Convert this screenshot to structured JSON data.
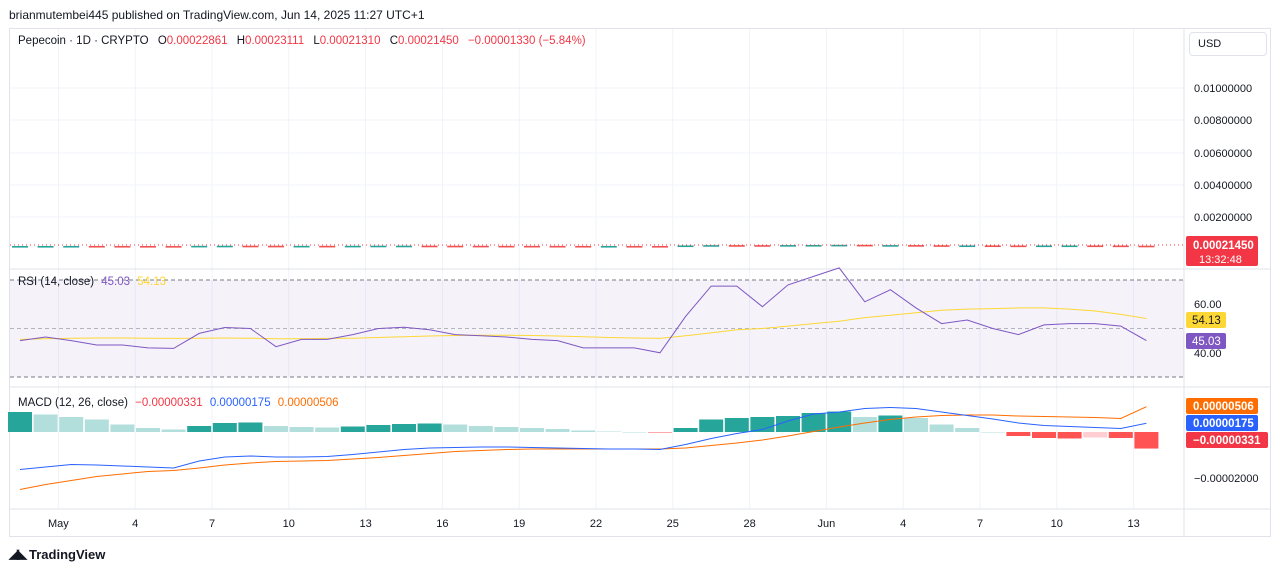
{
  "header": {
    "publisher_line": "brianmutembei445 published on TradingView.com, Jun 14, 2025 11:27 UTC+1"
  },
  "legend": {
    "symbol": "Pepecoin · 1D · CRYPTO",
    "open_label": "O",
    "open": "0.00022861",
    "high_label": "H",
    "high": "0.00023111",
    "low_label": "L",
    "low": "0.00021310",
    "close_label": "C",
    "close": "0.00021450",
    "change": "−0.00001330 (−5.84%)"
  },
  "currency": "USD",
  "price_axis": {
    "ticks": [
      "0.01000000",
      "0.00800000",
      "0.00600000",
      "0.00400000",
      "0.00200000"
    ],
    "last_price": "0.00021450",
    "countdown": "13:32:48"
  },
  "rsi": {
    "title": "RSI (14, close)",
    "value": "45.03",
    "ma_value": "54.13",
    "ticks": [
      "60.00",
      "40.00"
    ]
  },
  "macd": {
    "title": "MACD (12, 26, close)",
    "histogram": "−0.00000331",
    "macd": "0.00000175",
    "signal": "0.00000506",
    "ticks": [
      "−0.00002000"
    ]
  },
  "time_axis": [
    "May",
    "4",
    "7",
    "10",
    "13",
    "16",
    "19",
    "22",
    "25",
    "28",
    "Jun",
    "4",
    "7",
    "10",
    "13"
  ],
  "brand": "TradingView",
  "colors": {
    "up": "#26a69a",
    "down": "#ef5350",
    "rsi_line": "#7e57c2",
    "rsi_ma": "#fdd835",
    "macd_line": "#2962ff",
    "signal_line": "#ff6d00",
    "price_badge": "#f23645"
  },
  "chart_data": [
    {
      "type": "line",
      "name": "price",
      "x": [
        "May 1",
        "May 2",
        "May 3",
        "May 4",
        "May 5",
        "May 6",
        "May 7",
        "May 8",
        "May 9",
        "May 10",
        "May 11",
        "May 12",
        "May 13",
        "May 14",
        "May 15",
        "May 16",
        "May 17",
        "May 18",
        "May 19",
        "May 20",
        "May 21",
        "May 22",
        "May 23",
        "May 24",
        "May 25",
        "May 26",
        "May 27",
        "May 28",
        "May 29",
        "May 30",
        "May 31",
        "Jun 1",
        "Jun 2",
        "Jun 3",
        "Jun 4",
        "Jun 5",
        "Jun 6",
        "Jun 7",
        "Jun 8",
        "Jun 9",
        "Jun 10",
        "Jun 11",
        "Jun 12",
        "Jun 13",
        "Jun 14"
      ],
      "values": [
        0.00021,
        0.000212,
        0.000215,
        0.000214,
        0.000212,
        0.00021,
        0.000209,
        0.000222,
        0.000228,
        0.000226,
        0.000215,
        0.000221,
        0.000219,
        0.000225,
        0.00023,
        0.000231,
        0.000226,
        0.000224,
        0.00022,
        0.000219,
        0.000217,
        0.000215,
        0.000212,
        0.000213,
        0.000212,
        0.000209,
        0.000245,
        0.000265,
        0.000264,
        0.000255,
        0.00027,
        0.000275,
        0.000285,
        0.000262,
        0.000268,
        0.000258,
        0.000245,
        0.000247,
        0.00024,
        0.000235,
        0.000243,
        0.000244,
        0.00024,
        0.000229,
        0.0002145
      ],
      "ylim": [
        0,
        0.0112
      ]
    },
    {
      "type": "line",
      "name": "RSI (14, close)",
      "series": [
        {
          "name": "RSI",
          "values": [
            45,
            46.5,
            45,
            43.2,
            43.2,
            42,
            41.8,
            48,
            50.4,
            50,
            42.5,
            45.5,
            45.5,
            47.5,
            50,
            50.5,
            49.5,
            47.5,
            47,
            46.5,
            45.5,
            45,
            42,
            42,
            42,
            40,
            55,
            67.5,
            67.5,
            59,
            68,
            71.5,
            75,
            61,
            66,
            58.5,
            52,
            53.5,
            50,
            47.5,
            51.5,
            52,
            52,
            51,
            45.03
          ]
        },
        {
          "name": "RSI-based MA",
          "values": [
            45.5,
            45.8,
            46,
            46.1,
            46.1,
            46,
            45.9,
            46,
            46.1,
            46,
            45.8,
            45.8,
            45.9,
            46,
            46.3,
            46.6,
            46.9,
            47.1,
            47.2,
            47.2,
            47.1,
            46.9,
            46.6,
            46.3,
            46.1,
            45.9,
            47,
            48.2,
            49.5,
            50,
            51,
            52,
            53,
            54.5,
            55.5,
            56.5,
            57.5,
            58,
            58.2,
            58.5,
            58.5,
            58,
            57.2,
            55.8,
            54.13
          ]
        }
      ],
      "ylim": [
        20,
        80
      ]
    },
    {
      "type": "bar",
      "name": "MACD (12, 26, close)",
      "histogram": [
        4e-06,
        3.5e-06,
        3e-06,
        2.5e-06,
        1.5e-06,
        8e-07,
        5e-07,
        1.2e-06,
        1.8e-06,
        1.9e-06,
        1.2e-06,
        1e-06,
        9e-07,
        1.1e-06,
        1.4e-06,
        1.6e-06,
        1.7e-06,
        1.5e-06,
        1.2e-06,
        1e-06,
        8e-07,
        6e-07,
        3e-07,
        1e-07,
        0,
        -1e-07,
        8e-07,
        2.5e-06,
        2.8e-06,
        3e-06,
        3.2e-06,
        3.8e-06,
        4.1e-06,
        3e-06,
        3.3e-06,
        2.8e-06,
        1.5e-06,
        8e-07,
        0,
        -8e-07,
        -1.2e-06,
        -1.3e-06,
        -1.1e-06,
        -1.2e-06,
        -3.31e-06
      ],
      "series": [
        {
          "name": "MACD",
          "values": [
            -7.5e-06,
            -7e-06,
            -6.5e-06,
            -6.6e-06,
            -6.8e-06,
            -7e-06,
            -7.2e-06,
            -5.8e-06,
            -5e-06,
            -4.8e-06,
            -5e-06,
            -5e-06,
            -4.9e-06,
            -4.5e-06,
            -4e-06,
            -3.5e-06,
            -3.2e-06,
            -3.1e-06,
            -3e-06,
            -3e-06,
            -3.1e-06,
            -3.2e-06,
            -3.3e-06,
            -3.4e-06,
            -3.4e-06,
            -3.5e-06,
            -2.5e-06,
            -1.3e-06,
            -3e-07,
            5e-07,
            2.2e-06,
            3.6e-06,
            4e-06,
            4.7e-06,
            4.9e-06,
            4.7e-06,
            4e-06,
            3.3e-06,
            2.6e-06,
            1.8e-06,
            1.3e-06,
            1.1e-06,
            9e-07,
            7e-07,
            1.75e-06
          ]
        },
        {
          "name": "Signal",
          "values": [
            -1.15e-05,
            -1.05e-05,
            -9.7e-06,
            -8.9e-06,
            -8.4e-06,
            -7.9e-06,
            -7.7e-06,
            -7.2e-06,
            -6.6e-06,
            -6.2e-06,
            -5.9e-06,
            -5.8e-06,
            -5.7e-06,
            -5.4e-06,
            -5.1e-06,
            -4.7e-06,
            -4.3e-06,
            -3.9e-06,
            -3.7e-06,
            -3.5e-06,
            -3.4e-06,
            -3.4e-06,
            -3.4e-06,
            -3.4e-06,
            -3.4e-06,
            -3.4e-06,
            -3.2e-06,
            -2.7e-06,
            -2.2e-06,
            -1.6e-06,
            -8e-07,
            1e-07,
            1e-06,
            1.8e-06,
            2.5e-06,
            3e-06,
            3.3e-06,
            3.4e-06,
            3.4e-06,
            3.2e-06,
            3.1e-06,
            3e-06,
            2.9e-06,
            2.7e-06,
            5.06e-06
          ]
        }
      ],
      "ylim": [
        -1.3e-05,
        8e-06
      ]
    }
  ]
}
